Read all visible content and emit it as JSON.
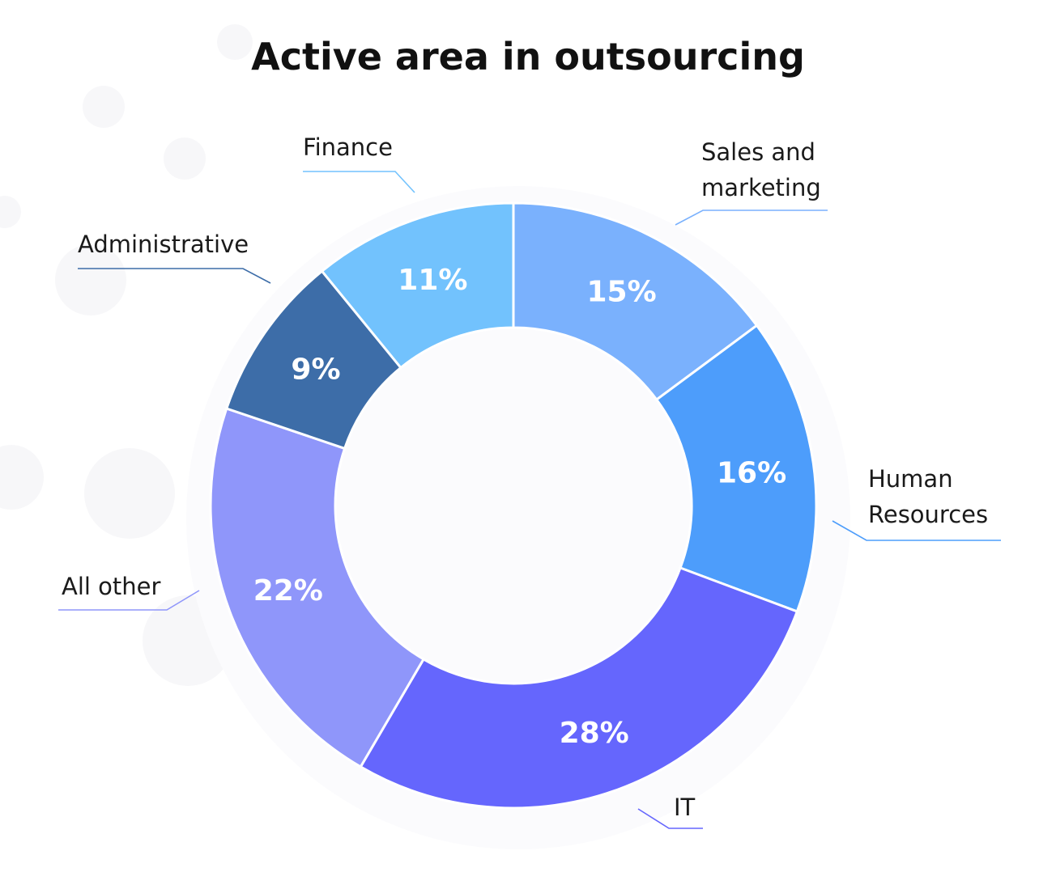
{
  "chart_data": {
    "type": "pie",
    "title": "Active area in outsourcing",
    "categories": [
      "Sales and marketing",
      "Human Resources",
      "IT",
      "All other",
      "Administrative",
      "Finance"
    ],
    "values": [
      15,
      16,
      28,
      22,
      9,
      11
    ],
    "value_labels": [
      "15%",
      "16%",
      "28%",
      "22%",
      "9%",
      "11%"
    ],
    "category_label_lines": [
      [
        "Sales and",
        "marketing"
      ],
      [
        "Human",
        "Resources"
      ],
      [
        "IT"
      ],
      [
        "All other"
      ],
      [
        "Administrative"
      ],
      [
        "Finance"
      ]
    ],
    "colors": [
      "#7ab1fd",
      "#4d9dfb",
      "#6566fd",
      "#8f96fa",
      "#3d6da8",
      "#72c2fd"
    ],
    "style": "donut",
    "legend": "none"
  }
}
